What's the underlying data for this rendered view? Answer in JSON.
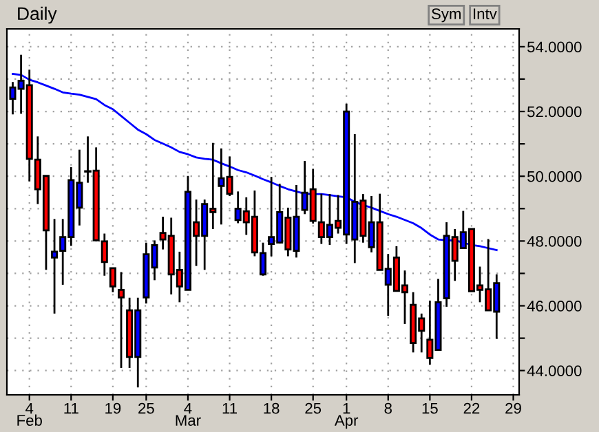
{
  "chart_data": {
    "type": "candlestick",
    "title": "Daily",
    "annotations": [
      "Sym",
      "Intv"
    ],
    "categories": [
      null,
      null,
      "4\nFeb",
      null,
      null,
      null,
      null,
      "11",
      null,
      null,
      null,
      null,
      "19",
      null,
      null,
      null,
      "25",
      null,
      null,
      null,
      null,
      "4\nMar",
      null,
      null,
      null,
      null,
      "11",
      null,
      null,
      null,
      null,
      "18",
      null,
      null,
      null,
      null,
      "25",
      null,
      null,
      null,
      "1\nApr",
      null,
      null,
      null,
      null,
      "8",
      null,
      null,
      null,
      null,
      "15",
      null,
      null,
      null,
      null,
      "22",
      null,
      null,
      null,
      null,
      "29"
    ],
    "ohlc": [
      [
        52.39,
        52.91,
        51.91,
        52.74
      ],
      [
        52.7,
        53.75,
        51.93,
        52.95
      ],
      [
        52.81,
        53.29,
        49.84,
        50.54
      ],
      [
        50.51,
        51.23,
        49.14,
        49.6
      ],
      [
        50.01,
        50.01,
        47.11,
        48.33
      ],
      [
        47.49,
        48.68,
        45.76,
        47.67
      ],
      [
        47.7,
        48.68,
        46.65,
        48.12
      ],
      [
        48.12,
        50.28,
        47.85,
        49.88
      ],
      [
        49.03,
        50.82,
        48.48,
        49.8
      ],
      [
        50.15,
        51.23,
        49.8,
        50.15
      ],
      [
        50.17,
        50.89,
        47.99,
        48.02
      ],
      [
        47.99,
        48.23,
        46.93,
        47.35
      ],
      [
        47.16,
        47.18,
        46.42,
        46.6
      ],
      [
        46.49,
        47.04,
        44.08,
        46.26
      ],
      [
        45.86,
        46.25,
        44.08,
        44.42
      ],
      [
        44.42,
        46.25,
        43.48,
        45.86
      ],
      [
        46.26,
        47.95,
        46.07,
        47.59
      ],
      [
        47.18,
        48.02,
        46.79,
        47.87
      ],
      [
        48.25,
        48.75,
        47.74,
        48.05
      ],
      [
        48.16,
        48.72,
        46.35,
        46.97
      ],
      [
        47.11,
        47.67,
        46.11,
        46.6
      ],
      [
        46.49,
        50.01,
        46.49,
        49.52
      ],
      [
        48.58,
        49.28,
        47.23,
        48.16
      ],
      [
        48.16,
        49.28,
        47.11,
        49.14
      ],
      [
        49.0,
        51.03,
        48.37,
        48.89
      ],
      [
        49.7,
        50.86,
        48.51,
        49.94
      ],
      [
        49.98,
        50.61,
        49.39,
        49.46
      ],
      [
        48.65,
        49.53,
        48.55,
        49.0
      ],
      [
        48.92,
        49.35,
        48.19,
        48.58
      ],
      [
        48.75,
        49.56,
        47.53,
        47.65
      ],
      [
        46.97,
        47.95,
        46.93,
        47.63
      ],
      [
        47.91,
        49.98,
        47.53,
        48.12
      ],
      [
        47.95,
        49.77,
        47.92,
        48.89
      ],
      [
        48.72,
        49.03,
        47.53,
        47.74
      ],
      [
        47.7,
        49.73,
        47.49,
        48.75
      ],
      [
        48.96,
        50.47,
        48.83,
        49.49
      ],
      [
        49.6,
        50.23,
        48.54,
        48.62
      ],
      [
        48.58,
        49.46,
        47.91,
        48.12
      ],
      [
        48.12,
        49.45,
        47.88,
        48.5
      ],
      [
        48.62,
        49.42,
        48.23,
        48.41
      ],
      [
        48.2,
        52.24,
        47.91,
        52.0
      ],
      [
        48.05,
        51.3,
        47.32,
        49.21
      ],
      [
        49.25,
        49.45,
        47.95,
        48.16
      ],
      [
        47.81,
        49.39,
        47.65,
        48.58
      ],
      [
        48.58,
        49.46,
        47.11,
        47.11
      ],
      [
        46.65,
        47.6,
        45.69,
        47.14
      ],
      [
        47.49,
        47.84,
        46.46,
        46.46
      ],
      [
        46.63,
        47.09,
        45.44,
        46.42
      ],
      [
        46.03,
        46.42,
        44.56,
        44.85
      ],
      [
        45.61,
        45.76,
        44.56,
        45.23
      ],
      [
        44.95,
        46.16,
        44.18,
        44.39
      ],
      [
        44.64,
        46.83,
        44.64,
        46.11
      ],
      [
        46.23,
        48.58,
        45.97,
        48.16
      ],
      [
        48.12,
        48.37,
        46.77,
        47.39
      ],
      [
        47.78,
        48.93,
        47.78,
        48.27
      ],
      [
        48.37,
        48.37,
        46.45,
        46.45
      ],
      [
        46.63,
        47.21,
        46.11,
        46.49
      ],
      [
        46.51,
        48.06,
        45.86,
        45.86
      ],
      [
        45.82,
        46.97,
        44.98,
        46.7
      ],
      null,
      null
    ],
    "colors": [
      "#0000ff",
      "#0000ff",
      "#ff0000",
      "#ff0000",
      "#ff0000",
      "#0000ff",
      "#0000ff",
      "#0000ff",
      "#0000ff",
      "#000000",
      "#ff0000",
      "#ff0000",
      "#ff0000",
      "#ff0000",
      "#ff0000",
      "#0000ff",
      "#0000ff",
      "#0000ff",
      "#ff0000",
      "#ff0000",
      "#ff0000",
      "#0000ff",
      "#ff0000",
      "#0000ff",
      "#ff0000",
      "#0000ff",
      "#ff0000",
      "#0000ff",
      "#ff0000",
      "#ff0000",
      "#0000ff",
      "#0000ff",
      "#0000ff",
      "#ff0000",
      "#0000ff",
      "#0000ff",
      "#ff0000",
      "#ff0000",
      "#0000ff",
      "#ff0000",
      "#0000ff",
      "#0000ff",
      "#ff0000",
      "#0000ff",
      "#ff0000",
      "#0000ff",
      "#ff0000",
      "#ff0000",
      "#ff0000",
      "#ff0000",
      "#ff0000",
      "#0000ff",
      "#0000ff",
      "#ff0000",
      "#0000ff",
      "#ff0000",
      "#ff0000",
      "#ff0000",
      "#0000ff",
      null,
      null
    ],
    "series": [
      {
        "type": "line",
        "color": "#0000ff",
        "values": [
          53.16,
          53.13,
          52.98,
          52.9,
          52.8,
          52.7,
          52.59,
          52.55,
          52.52,
          52.45,
          52.38,
          52.2,
          52.07,
          51.86,
          51.65,
          51.44,
          51.3,
          51.12,
          51.01,
          50.89,
          50.75,
          50.68,
          50.58,
          50.54,
          50.51,
          50.4,
          50.3,
          50.19,
          50.12,
          50.02,
          49.91,
          49.81,
          49.7,
          49.6,
          49.53,
          49.46,
          49.45,
          49.45,
          49.42,
          49.38,
          49.35,
          49.21,
          49.11,
          49.03,
          48.93,
          48.83,
          48.75,
          48.65,
          48.55,
          48.4,
          48.2,
          48.05,
          48.02,
          48.02,
          47.95,
          47.88,
          47.84,
          47.78,
          47.72,
          null,
          null
        ]
      }
    ],
    "ylim": [
      43.25,
      54.55
    ],
    "yticks": [
      {
        "value": 44,
        "label": "44.0000"
      },
      {
        "value": 45,
        "label": null
      },
      {
        "value": 46,
        "label": "46.0000"
      },
      {
        "value": 47,
        "label": null
      },
      {
        "value": 48,
        "label": "48.0000"
      },
      {
        "value": 49,
        "label": null
      },
      {
        "value": 50,
        "label": "50.0000"
      },
      {
        "value": 51,
        "label": null
      },
      {
        "value": 52,
        "label": "52.0000"
      },
      {
        "value": 53,
        "label": null
      },
      {
        "value": 54,
        "label": "54.0000"
      }
    ],
    "grid": true,
    "line_style": "solid",
    "marker": "none"
  }
}
